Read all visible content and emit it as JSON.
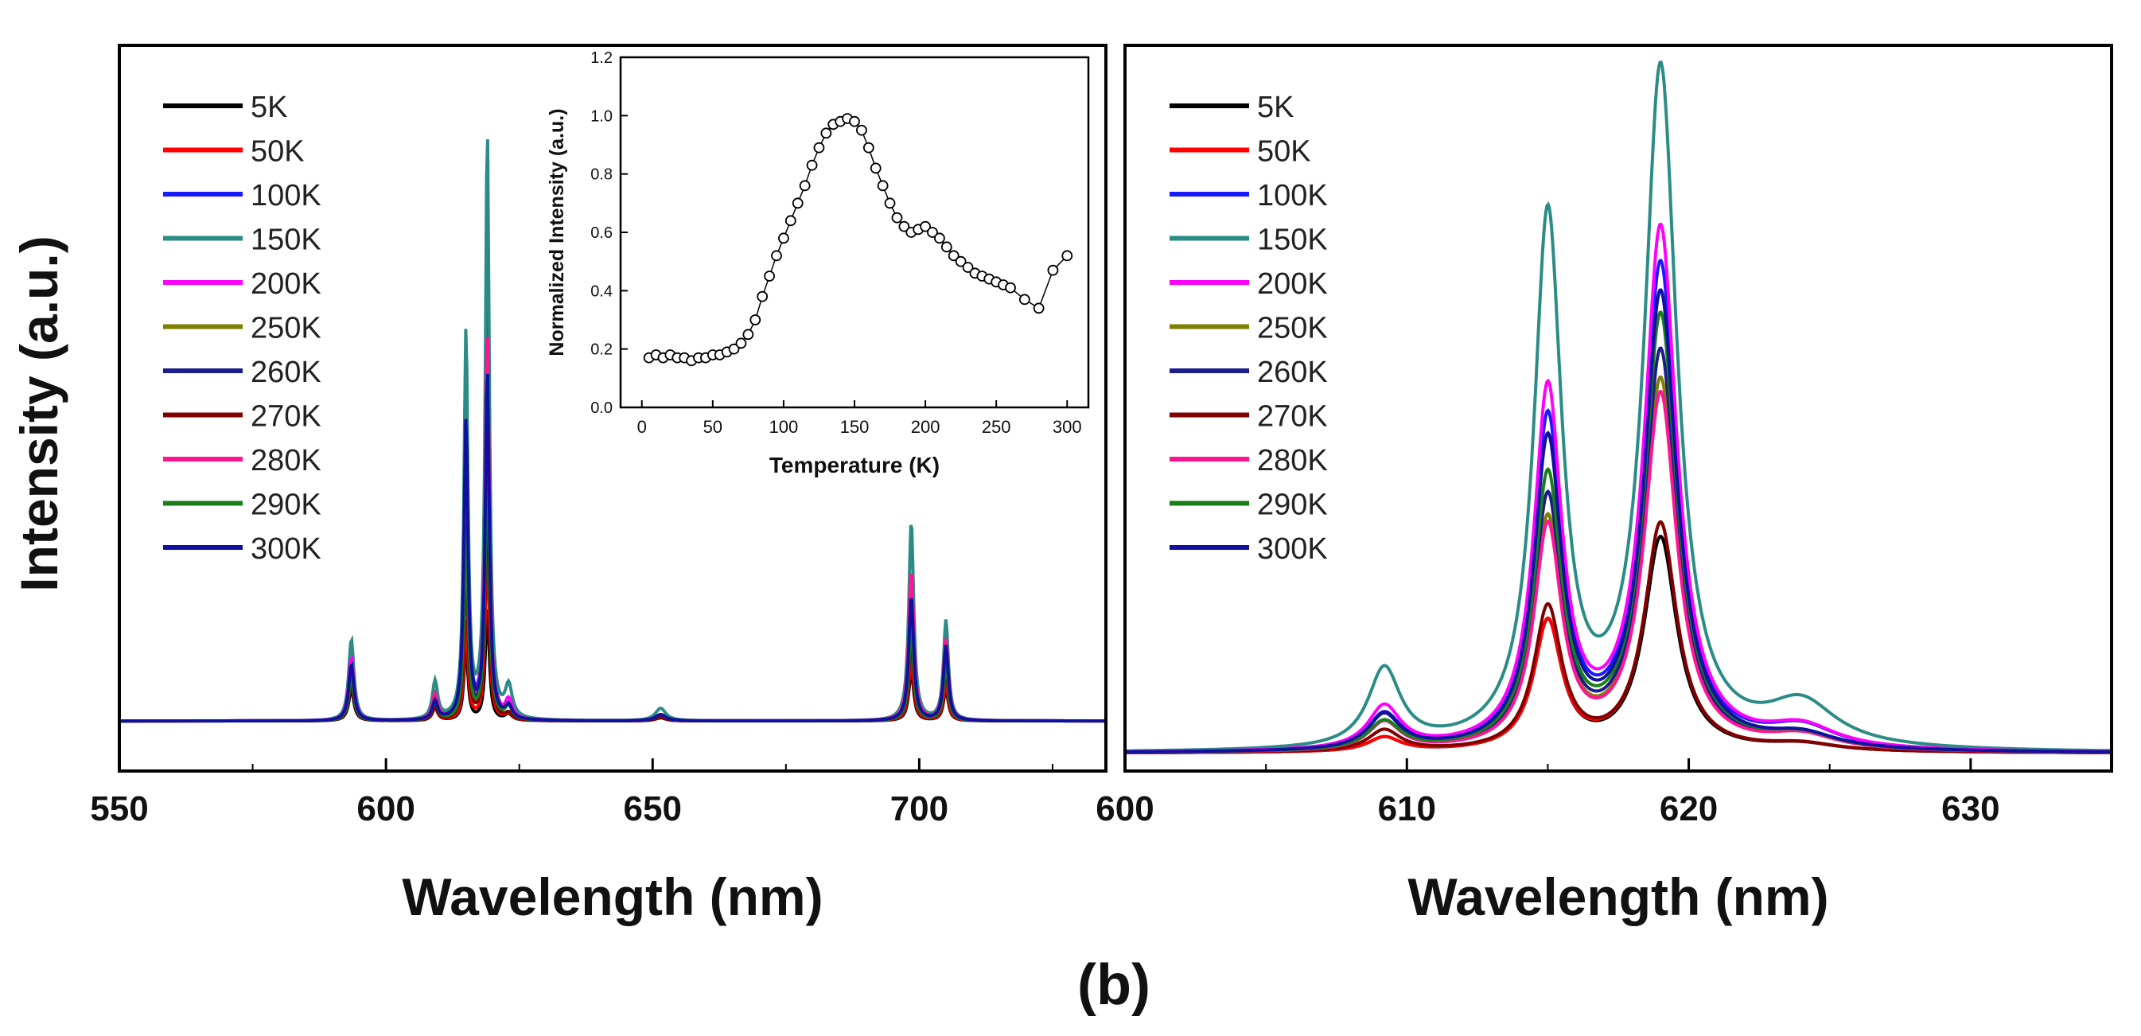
{
  "figure": {
    "caption": "(b)",
    "y_axis_title": "Intensity (a.u.)"
  },
  "legend_temperatures": [
    "5K",
    "50K",
    "100K",
    "150K",
    "200K",
    "250K",
    "260K",
    "270K",
    "280K",
    "290K",
    "300K"
  ],
  "series_colors": {
    "5K": "#000000",
    "50K": "#ff0000",
    "100K": "#1a1aff",
    "150K": "#2b8c86",
    "200K": "#ff00ff",
    "250K": "#7f7f00",
    "260K": "#1c1c8a",
    "270K": "#7f0000",
    "280K": "#ff1493",
    "290K": "#1a7f1a",
    "300K": "#1010a0"
  },
  "chart_data": [
    {
      "id": "left",
      "type": "line",
      "title": "",
      "xlabel": "Wavelength (nm)",
      "ylabel": "Intensity (a.u.)",
      "xlim": [
        550,
        735
      ],
      "ylim": [
        -0.08,
        1.08
      ],
      "xticks": [
        550,
        600,
        650,
        700
      ],
      "xtick_labels": [
        "550",
        "600",
        "650",
        "700"
      ],
      "legend_position": "top-left",
      "peaks_nm": [
        {
          "center": 593.5,
          "width": 0.6
        },
        {
          "center": 609.2,
          "width": 0.6
        },
        {
          "center": 615.0,
          "width": 0.45
        },
        {
          "center": 619.0,
          "width": 0.45
        },
        {
          "center": 623.0,
          "width": 0.8
        },
        {
          "center": 651.5,
          "width": 1.2
        },
        {
          "center": 698.5,
          "width": 0.55
        },
        {
          "center": 705.0,
          "width": 0.55
        }
      ],
      "series": [
        {
          "name": "5K",
          "amplitudes": [
            0.05,
            0.02,
            0.12,
            0.18,
            0.01,
            0.005,
            0.08,
            0.05
          ]
        },
        {
          "name": "50K",
          "amplitudes": [
            0.06,
            0.02,
            0.16,
            0.28,
            0.01,
            0.005,
            0.1,
            0.06
          ]
        },
        {
          "name": "100K",
          "amplitudes": [
            0.09,
            0.04,
            0.5,
            0.68,
            0.02,
            0.01,
            0.22,
            0.14
          ]
        },
        {
          "name": "150K",
          "amplitudes": [
            0.13,
            0.06,
            0.62,
            0.94,
            0.05,
            0.02,
            0.32,
            0.16
          ]
        },
        {
          "name": "200K",
          "amplitudes": [
            0.1,
            0.04,
            0.4,
            0.58,
            0.03,
            0.01,
            0.19,
            0.11
          ]
        },
        {
          "name": "250K",
          "amplitudes": [
            0.07,
            0.03,
            0.3,
            0.46,
            0.02,
            0.01,
            0.15,
            0.09
          ]
        },
        {
          "name": "260K",
          "amplitudes": [
            0.08,
            0.03,
            0.34,
            0.5,
            0.02,
            0.01,
            0.17,
            0.1
          ]
        },
        {
          "name": "270K",
          "amplitudes": [
            0.06,
            0.02,
            0.24,
            0.37,
            0.01,
            0.005,
            0.13,
            0.08
          ]
        },
        {
          "name": "280K",
          "amplitudes": [
            0.09,
            0.04,
            0.45,
            0.62,
            0.02,
            0.01,
            0.24,
            0.13
          ]
        },
        {
          "name": "290K",
          "amplitudes": [
            0.07,
            0.03,
            0.3,
            0.44,
            0.02,
            0.01,
            0.15,
            0.09
          ]
        },
        {
          "name": "300K",
          "amplitudes": [
            0.09,
            0.03,
            0.48,
            0.56,
            0.02,
            0.01,
            0.2,
            0.12
          ]
        }
      ]
    },
    {
      "id": "inset",
      "type": "scatter",
      "title": "",
      "xlabel": "Temperature (K)",
      "ylabel": "Normalized Intensity (a.u.)",
      "xlim": [
        -15,
        315
      ],
      "ylim": [
        0.0,
        1.2
      ],
      "xticks": [
        0,
        50,
        100,
        150,
        200,
        250,
        300
      ],
      "yticks": [
        0.0,
        0.2,
        0.4,
        0.6,
        0.8,
        1.0,
        1.2
      ],
      "ytick_labels": [
        "0.0",
        "0.2",
        "0.4",
        "0.6",
        "0.8",
        "1.0",
        "1.2"
      ],
      "x": [
        5,
        10,
        15,
        20,
        25,
        30,
        35,
        40,
        45,
        50,
        55,
        60,
        65,
        70,
        75,
        80,
        85,
        90,
        95,
        100,
        105,
        110,
        115,
        120,
        125,
        130,
        135,
        140,
        145,
        150,
        155,
        160,
        165,
        170,
        175,
        180,
        185,
        190,
        195,
        200,
        205,
        210,
        215,
        220,
        225,
        230,
        235,
        240,
        245,
        250,
        255,
        260,
        270,
        280,
        290,
        300
      ],
      "y": [
        0.17,
        0.18,
        0.17,
        0.18,
        0.17,
        0.17,
        0.16,
        0.17,
        0.17,
        0.18,
        0.18,
        0.19,
        0.2,
        0.22,
        0.25,
        0.3,
        0.38,
        0.45,
        0.52,
        0.58,
        0.64,
        0.7,
        0.76,
        0.83,
        0.89,
        0.94,
        0.97,
        0.98,
        0.99,
        0.98,
        0.95,
        0.89,
        0.82,
        0.76,
        0.7,
        0.65,
        0.62,
        0.6,
        0.61,
        0.62,
        0.6,
        0.58,
        0.55,
        0.52,
        0.5,
        0.48,
        0.46,
        0.45,
        0.44,
        0.43,
        0.42,
        0.41,
        0.37,
        0.34,
        0.47,
        0.52
      ]
    },
    {
      "id": "right",
      "type": "line",
      "title": "",
      "xlabel": "Wavelength (nm)",
      "ylabel": "",
      "xlim": [
        600,
        635
      ],
      "ylim": [
        -0.02,
        1.0
      ],
      "xticks": [
        600,
        610,
        620,
        630
      ],
      "xtick_labels": [
        "600",
        "610",
        "620",
        "630"
      ],
      "legend_position": "top-left",
      "peaks_nm": [
        {
          "center": 609.2,
          "width": 0.7
        },
        {
          "center": 615.0,
          "width": 0.6
        },
        {
          "center": 619.0,
          "width": 0.7
        },
        {
          "center": 624.0,
          "width": 1.5
        }
      ],
      "series": [
        {
          "name": "5K",
          "amplitudes": [
            0.02,
            0.18,
            0.3,
            0.01
          ]
        },
        {
          "name": "50K",
          "amplitudes": [
            0.02,
            0.18,
            0.32,
            0.01
          ]
        },
        {
          "name": "100K",
          "amplitudes": [
            0.05,
            0.46,
            0.68,
            0.03
          ]
        },
        {
          "name": "150K",
          "amplitudes": [
            0.11,
            0.74,
            0.95,
            0.06
          ]
        },
        {
          "name": "200K",
          "amplitudes": [
            0.06,
            0.5,
            0.73,
            0.03
          ]
        },
        {
          "name": "250K",
          "amplitudes": [
            0.04,
            0.32,
            0.52,
            0.02
          ]
        },
        {
          "name": "260K",
          "amplitudes": [
            0.05,
            0.35,
            0.56,
            0.02
          ]
        },
        {
          "name": "270K",
          "amplitudes": [
            0.03,
            0.2,
            0.32,
            0.01
          ]
        },
        {
          "name": "280K",
          "amplitudes": [
            0.04,
            0.31,
            0.5,
            0.02
          ]
        },
        {
          "name": "290K",
          "amplitudes": [
            0.04,
            0.38,
            0.61,
            0.02
          ]
        },
        {
          "name": "300K",
          "amplitudes": [
            0.05,
            0.43,
            0.64,
            0.02
          ]
        }
      ]
    }
  ]
}
